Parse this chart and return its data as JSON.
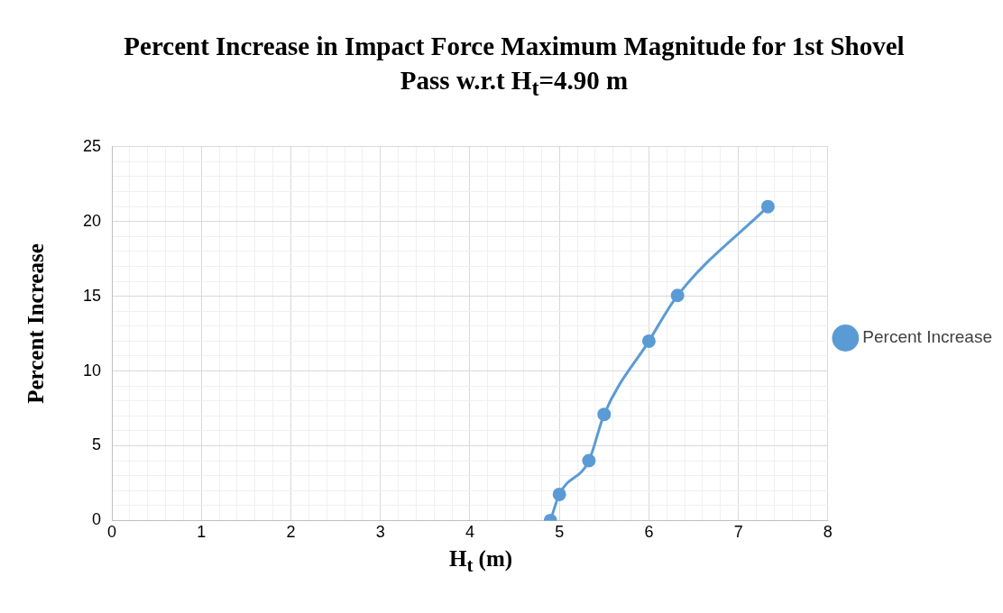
{
  "chart_data": {
    "type": "line",
    "title": "Percent Increase in Impact Force Maximum Magnitude for 1st Shovel Pass w.r.t H$_{t}$=4.90 m",
    "xlabel": "H$_{t}$ (m)",
    "ylabel": "Percent Increase",
    "series": [
      {
        "name": "Percent Increase",
        "color": "#5b9bd5",
        "x": [
          4.9,
          5.0,
          5.33,
          5.5,
          6.0,
          6.32,
          7.33
        ],
        "values": [
          0,
          1.75,
          4.0,
          7.1,
          12.0,
          15.05,
          21.0
        ]
      }
    ],
    "xlim": [
      0,
      8
    ],
    "ylim": [
      0,
      25
    ],
    "xticks": [
      0,
      {
        "value": 0.2,
        "label": null
      },
      {
        "value": 0.4,
        "label": null
      },
      {
        "value": 0.6,
        "label": null
      },
      {
        "value": 0.8,
        "label": null
      },
      1,
      {
        "value": 1.2,
        "label": null
      },
      {
        "value": 1.4,
        "label": null
      },
      {
        "value": 1.6,
        "label": null
      },
      {
        "value": 1.8,
        "label": null
      },
      2,
      {
        "value": 2.2,
        "label": null
      },
      {
        "value": 2.4,
        "label": null
      },
      {
        "value": 2.6,
        "label": null
      },
      {
        "value": 2.8,
        "label": null
      },
      3,
      {
        "value": 3.2,
        "label": null
      },
      {
        "value": 3.4,
        "label": null
      },
      {
        "value": 3.6,
        "label": null
      },
      {
        "value": 3.8,
        "label": null
      },
      4,
      {
        "value": 4.2,
        "label": null
      },
      {
        "value": 4.4,
        "label": null
      },
      {
        "value": 4.6,
        "label": null
      },
      {
        "value": 4.8,
        "label": null
      },
      5,
      {
        "value": 5.2,
        "label": null
      },
      {
        "value": 5.4,
        "label": null
      },
      {
        "value": 5.6,
        "label": null
      },
      {
        "value": 5.8,
        "label": null
      },
      6,
      {
        "value": 6.2,
        "label": null
      },
      {
        "value": 6.4,
        "label": null
      },
      {
        "value": 6.6,
        "label": null
      },
      {
        "value": 6.8,
        "label": null
      },
      7,
      {
        "value": 7.2,
        "label": null
      },
      {
        "value": 7.4,
        "label": null
      },
      {
        "value": 7.6,
        "label": null
      },
      {
        "value": 7.8,
        "label": null
      },
      8
    ],
    "yticks": [
      0,
      {
        "value": 1,
        "label": null
      },
      {
        "value": 2,
        "label": null
      },
      {
        "value": 3,
        "label": null
      },
      {
        "value": 4,
        "label": null
      },
      5,
      {
        "value": 6,
        "label": null
      },
      {
        "value": 7,
        "label": null
      },
      {
        "value": 8,
        "label": null
      },
      {
        "value": 9,
        "label": null
      },
      10,
      {
        "value": 11,
        "label": null
      },
      {
        "value": 12,
        "label": null
      },
      {
        "value": 13,
        "label": null
      },
      {
        "value": 14,
        "label": null
      },
      15,
      {
        "value": 16,
        "label": null
      },
      {
        "value": 17,
        "label": null
      },
      {
        "value": 18,
        "label": null
      },
      {
        "value": 19,
        "label": null
      },
      20,
      {
        "value": 21,
        "label": null
      },
      {
        "value": 22,
        "label": null
      },
      {
        "value": 23,
        "label": null
      },
      {
        "value": 24,
        "label": null
      },
      25
    ],
    "grid": true,
    "legend": "right",
    "marker": "circle",
    "line_style": "solid"
  }
}
